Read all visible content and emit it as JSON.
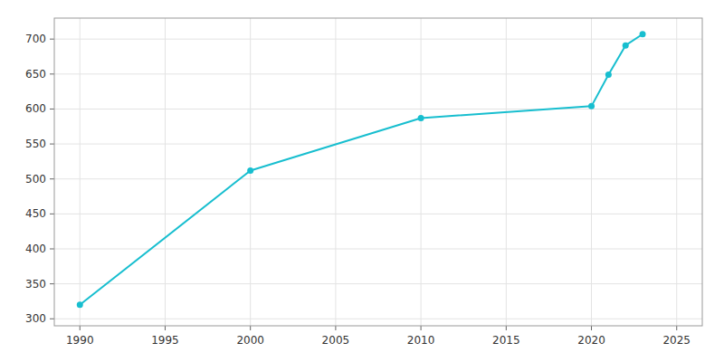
{
  "chart_data": {
    "type": "line",
    "x": [
      1990,
      2000,
      2010,
      2020,
      2021,
      2022,
      2023
    ],
    "values": [
      320,
      512,
      587,
      604,
      649,
      691,
      707
    ],
    "color": "#17becf",
    "marker": "circle",
    "xlim": [
      1988.5,
      2026.5
    ],
    "ylim": [
      290,
      730
    ],
    "xticks": [
      1990,
      1995,
      2000,
      2005,
      2010,
      2015,
      2020,
      2025
    ],
    "yticks": [
      300,
      350,
      400,
      450,
      500,
      550,
      600,
      650,
      700
    ],
    "grid": true
  }
}
